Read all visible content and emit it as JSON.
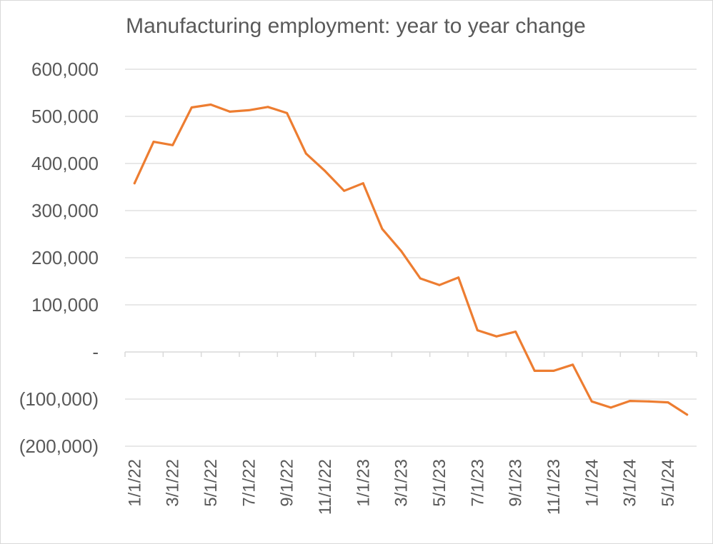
{
  "chart_data": {
    "type": "line",
    "title": "Manufacturing employment: year to year change",
    "xlabel": "",
    "ylabel": "",
    "ylim": [
      -200000,
      600000
    ],
    "y_ticks": [
      600000,
      500000,
      400000,
      300000,
      200000,
      100000,
      0,
      -100000,
      -200000
    ],
    "y_tick_labels": [
      "600,000",
      "500,000",
      "400,000",
      "300,000",
      "200,000",
      "100,000",
      "-",
      "(100,000)",
      "(200,000)"
    ],
    "x_tick_labels": [
      "1/1/22",
      "3/1/22",
      "5/1/22",
      "7/1/22",
      "9/1/22",
      "11/1/22",
      "1/1/23",
      "3/1/23",
      "5/1/23",
      "7/1/23",
      "9/1/23",
      "11/1/23",
      "1/1/24",
      "3/1/24",
      "5/1/24"
    ],
    "grid": true,
    "line_color": "#ED7D31",
    "series": [
      {
        "name": "Manufacturing employment: year to year change",
        "x": [
          "1/1/22",
          "2/1/22",
          "3/1/22",
          "4/1/22",
          "5/1/22",
          "6/1/22",
          "7/1/22",
          "8/1/22",
          "9/1/22",
          "10/1/22",
          "11/1/22",
          "12/1/22",
          "1/1/23",
          "2/1/23",
          "3/1/23",
          "4/1/23",
          "5/1/23",
          "6/1/23",
          "7/1/23",
          "8/1/23",
          "9/1/23",
          "10/1/23",
          "11/1/23",
          "12/1/23",
          "1/1/24",
          "2/1/24",
          "3/1/24",
          "4/1/24",
          "5/1/24",
          "6/1/24"
        ],
        "values": [
          358000,
          446000,
          439000,
          519000,
          525000,
          510000,
          513000,
          520000,
          507000,
          421000,
          384000,
          342000,
          358000,
          261000,
          214000,
          156000,
          142000,
          158000,
          46000,
          33000,
          43000,
          -40000,
          -40000,
          -27000,
          -105000,
          -118000,
          -104000,
          -105000,
          -107000,
          -133000
        ]
      }
    ]
  }
}
